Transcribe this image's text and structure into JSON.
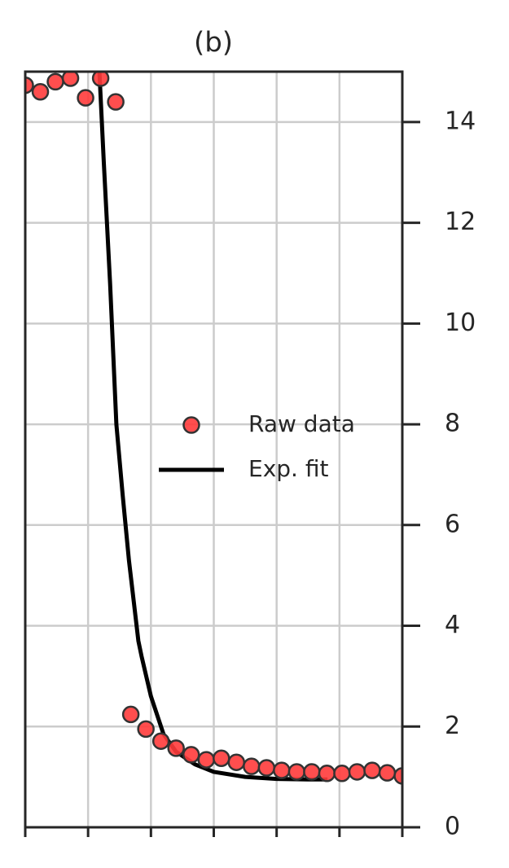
{
  "chart_data": {
    "type": "scatter-line",
    "title": "(b)",
    "xlim": [
      0,
      6
    ],
    "xticks": [
      0,
      1,
      2,
      3,
      4,
      5,
      6
    ],
    "x_tick_labels": false,
    "ylim": [
      0,
      15
    ],
    "yticks": [
      0,
      2,
      4,
      6,
      8,
      10,
      12,
      14
    ],
    "y_axis_side": "right",
    "grid": true,
    "legend": "center right",
    "series": [
      {
        "name": "Raw data",
        "kind": "scatter",
        "color": "#ff3b3b",
        "edgecolor": "#333333",
        "x": [
          0,
          0.24,
          0.48,
          0.72,
          0.96,
          1.2,
          1.44,
          1.68,
          1.92,
          2.16,
          2.4,
          2.64,
          2.88,
          3.12,
          3.36,
          3.6,
          3.84,
          4.08,
          4.32,
          4.56,
          4.8,
          5.04,
          5.28,
          5.52,
          5.76,
          6
        ],
        "values": [
          14.73,
          14.6,
          14.8,
          14.87,
          14.48,
          14.87,
          14.4,
          2.24,
          1.95,
          1.71,
          1.57,
          1.44,
          1.34,
          1.37,
          1.29,
          1.21,
          1.18,
          1.13,
          1.1,
          1.1,
          1.07,
          1.07,
          1.1,
          1.13,
          1.08,
          1.02
        ]
      },
      {
        "name": "Exp. fit",
        "kind": "line",
        "color": "#000000",
        "x": [
          1.18,
          1.25,
          1.35,
          1.45,
          1.55,
          1.65,
          1.8,
          1.85,
          2.0,
          2.2,
          2.4,
          2.7,
          3.0,
          3.5,
          4.0,
          4.5,
          4.81
        ],
        "values": [
          15.0,
          13.2,
          10.8,
          8.0,
          6.6,
          5.3,
          3.7,
          3.4,
          2.6,
          1.85,
          1.5,
          1.25,
          1.1,
          1.0,
          0.96,
          0.95,
          0.95
        ]
      }
    ]
  }
}
